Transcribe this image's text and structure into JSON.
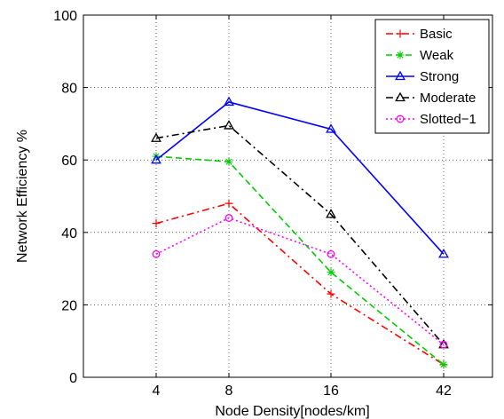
{
  "chart_data": {
    "type": "line",
    "categories": [
      "4",
      "8",
      "16",
      "42"
    ],
    "xlabel": "Node Density[nodes/km]",
    "ylabel": "Network Efficiency %",
    "ylim": [
      0,
      100
    ],
    "yticks": [
      0,
      20,
      40,
      60,
      80,
      100
    ],
    "grid": true,
    "legend_position": "top-right",
    "series": [
      {
        "name": "Basic",
        "values": [
          42.5,
          48,
          23,
          3.5
        ],
        "color": "#ff0000",
        "dash": "dash-dot",
        "marker": "plus"
      },
      {
        "name": "Weak",
        "values": [
          61,
          59.5,
          29,
          3.5
        ],
        "color": "#00cc00",
        "dash": "dashed",
        "marker": "star"
      },
      {
        "name": "Strong",
        "values": [
          60,
          76,
          68.5,
          34
        ],
        "color": "#0000ff",
        "dash": "solid",
        "marker": "triangle"
      },
      {
        "name": "Moderate",
        "values": [
          66,
          69.5,
          45,
          9
        ],
        "color": "#000000",
        "dash": "dash-dot",
        "marker": "triangle"
      },
      {
        "name": "Slotted−1",
        "values": [
          34,
          44,
          34,
          9
        ],
        "color": "#ff00ff",
        "dash": "dotted",
        "marker": "circle"
      }
    ]
  }
}
